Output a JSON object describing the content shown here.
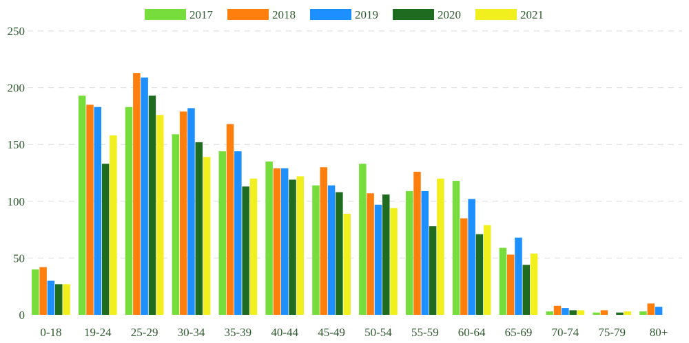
{
  "chart_data": {
    "type": "bar",
    "title": "",
    "xlabel": "",
    "ylabel": "",
    "ylim": [
      0,
      250
    ],
    "yticks": [
      0,
      50,
      100,
      150,
      200,
      250
    ],
    "grid": true,
    "legend_position": "top-center",
    "categories": [
      "0-18",
      "19-24",
      "25-29",
      "30-34",
      "35-39",
      "40-44",
      "45-49",
      "50-54",
      "55-59",
      "60-64",
      "65-69",
      "70-74",
      "75-79",
      "80+"
    ],
    "series": [
      {
        "name": "2017",
        "color": "#77dd3c",
        "values": [
          40,
          193,
          183,
          159,
          144,
          135,
          114,
          133,
          109,
          118,
          59,
          3,
          2,
          3
        ]
      },
      {
        "name": "2018",
        "color": "#ff7f0e",
        "values": [
          42,
          185,
          213,
          179,
          168,
          129,
          130,
          107,
          126,
          85,
          53,
          8,
          4,
          10
        ]
      },
      {
        "name": "2019",
        "color": "#1e8fff",
        "values": [
          30,
          183,
          209,
          182,
          144,
          129,
          114,
          97,
          109,
          102,
          68,
          6,
          0,
          7
        ]
      },
      {
        "name": "2020",
        "color": "#1f6b1f",
        "values": [
          27,
          133,
          193,
          152,
          113,
          119,
          108,
          106,
          78,
          71,
          44,
          4,
          2,
          0
        ]
      },
      {
        "name": "2021",
        "color": "#f2ef1f",
        "values": [
          27,
          158,
          176,
          139,
          120,
          122,
          89,
          94,
          120,
          79,
          54,
          4,
          3,
          0
        ]
      }
    ]
  }
}
